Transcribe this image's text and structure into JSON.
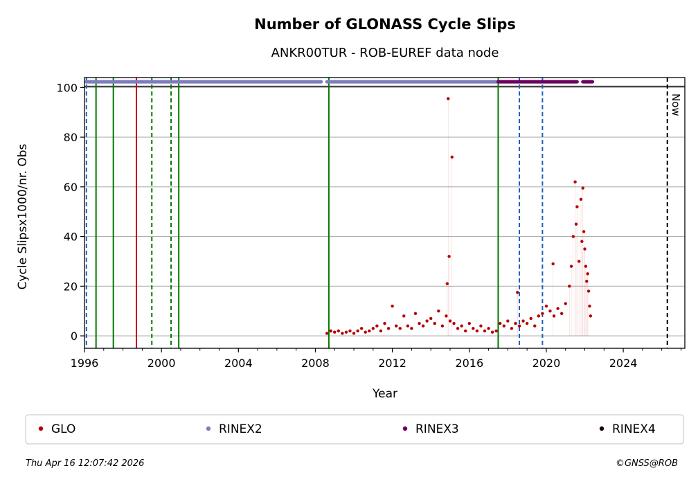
{
  "chart_data": {
    "type": "scatter",
    "title": "Number of GLONASS Cycle Slips",
    "subtitle": "ANKR00TUR - ROB-EUREF data node",
    "xlabel": "Year",
    "ylabel": "Cycle Slipsx1000/nr. Obs",
    "xlim": [
      1996.0,
      2027.2
    ],
    "ylim": [
      -5,
      104
    ],
    "xticks": [
      1996,
      2000,
      2004,
      2008,
      2012,
      2016,
      2020,
      2024
    ],
    "xtick_labels": [
      "1996",
      "2000",
      "2004",
      "2008",
      "2012",
      "2016",
      "2020",
      "2024"
    ],
    "yticks": [
      0,
      20,
      40,
      60,
      80,
      100
    ],
    "ytick_labels": [
      "0",
      "20",
      "40",
      "60",
      "80",
      "100"
    ],
    "grid": "horizontal",
    "reference_line_y": 100.5,
    "now_label": "Now",
    "now_x": 2026.29,
    "vertical_markers": [
      {
        "x": 1996.1,
        "style": "dashed",
        "color": "#1f5fbf"
      },
      {
        "x": 1996.6,
        "style": "solid",
        "color": "#007a00"
      },
      {
        "x": 1997.5,
        "style": "solid",
        "color": "#007a00"
      },
      {
        "x": 1998.7,
        "style": "solid",
        "color": "#c00000"
      },
      {
        "x": 1999.5,
        "style": "dashed",
        "color": "#007a00"
      },
      {
        "x": 2000.5,
        "style": "dashed",
        "color": "#007a00"
      },
      {
        "x": 2000.9,
        "style": "solid",
        "color": "#007a00"
      },
      {
        "x": 2008.7,
        "style": "solid",
        "color": "#007a00"
      },
      {
        "x": 2017.5,
        "style": "solid",
        "color": "#007a00"
      },
      {
        "x": 2018.6,
        "style": "dashed",
        "color": "#1f5fbf"
      },
      {
        "x": 2019.8,
        "style": "dashed",
        "color": "#1f5fbf"
      }
    ],
    "availability_bars": [
      {
        "name": "RINEX2",
        "y": 102.3,
        "color": "#7d7dbd",
        "segments": [
          [
            1996.1,
            2008.3
          ],
          [
            2008.6,
            2017.5
          ]
        ]
      },
      {
        "name": "RINEX3",
        "y": 102.3,
        "color": "#6a005f",
        "segments": [
          [
            2017.5,
            2021.6
          ],
          [
            2021.9,
            2022.4
          ]
        ]
      }
    ],
    "series": [
      {
        "name": "GLO",
        "color": "#b50000",
        "x": [
          2008.6,
          2008.8,
          2009.0,
          2009.2,
          2009.4,
          2009.6,
          2009.8,
          2010.0,
          2010.2,
          2010.4,
          2010.6,
          2010.8,
          2011.0,
          2011.2,
          2011.4,
          2011.6,
          2011.8,
          2012.0,
          2012.2,
          2012.4,
          2012.6,
          2012.8,
          2013.0,
          2013.2,
          2013.4,
          2013.6,
          2013.8,
          2014.0,
          2014.2,
          2014.4,
          2014.6,
          2014.8,
          2014.85,
          2014.9,
          2014.95,
          2015.0,
          2015.1,
          2015.2,
          2015.4,
          2015.6,
          2015.8,
          2016.0,
          2016.2,
          2016.4,
          2016.6,
          2016.8,
          2017.0,
          2017.2,
          2017.4,
          2017.6,
          2017.8,
          2018.0,
          2018.2,
          2018.4,
          2018.5,
          2018.6,
          2018.8,
          2019.0,
          2019.2,
          2019.4,
          2019.6,
          2019.8,
          2020.0,
          2020.2,
          2020.35,
          2020.4,
          2020.6,
          2020.8,
          2021.0,
          2021.2,
          2021.3,
          2021.4,
          2021.5,
          2021.55,
          2021.6,
          2021.7,
          2021.8,
          2021.85,
          2021.9,
          2021.95,
          2022.0,
          2022.05,
          2022.1,
          2022.15,
          2022.2,
          2022.25,
          2022.3
        ],
        "y": [
          1,
          2,
          1.5,
          2,
          1,
          1.5,
          2,
          1,
          2,
          3,
          1.5,
          2,
          3,
          4,
          2,
          5,
          3,
          12,
          4,
          3,
          8,
          4,
          3,
          9,
          5,
          4,
          6,
          7,
          5,
          10,
          4,
          8,
          21,
          95.5,
          32,
          6,
          72,
          5,
          3,
          4,
          2,
          5,
          3,
          2,
          4,
          2,
          3,
          1.5,
          2,
          5,
          4,
          6,
          3,
          5,
          17.5,
          4,
          6,
          5,
          7,
          4,
          8,
          9,
          12,
          10,
          29,
          8,
          11,
          9,
          13,
          20,
          28,
          40,
          62,
          45,
          52,
          30,
          55,
          38,
          59.5,
          42,
          35,
          28,
          22,
          25,
          18,
          12,
          8
        ]
      },
      {
        "name": "RINEX2",
        "color": "#7d7dbd",
        "x": [],
        "y": []
      },
      {
        "name": "RINEX3",
        "color": "#6a005f",
        "x": [],
        "y": []
      },
      {
        "name": "RINEX4",
        "color": "#1a0014",
        "x": [],
        "y": []
      }
    ],
    "legend_labels": [
      "GLO",
      "RINEX2",
      "RINEX3",
      "RINEX4"
    ],
    "legend_position": "bottom"
  },
  "footer": {
    "timestamp": "Thu Apr 16 12:07:42 2026",
    "credit": "©GNSS@ROB"
  },
  "colors": {
    "glo": "#b50000",
    "rinex2": "#7d7dbd",
    "rinex3": "#6a005f",
    "rinex4": "#1a0014",
    "grid": "#b0b0b0",
    "green": "#007a00",
    "blue": "#1f5fbf",
    "red": "#c00000"
  }
}
